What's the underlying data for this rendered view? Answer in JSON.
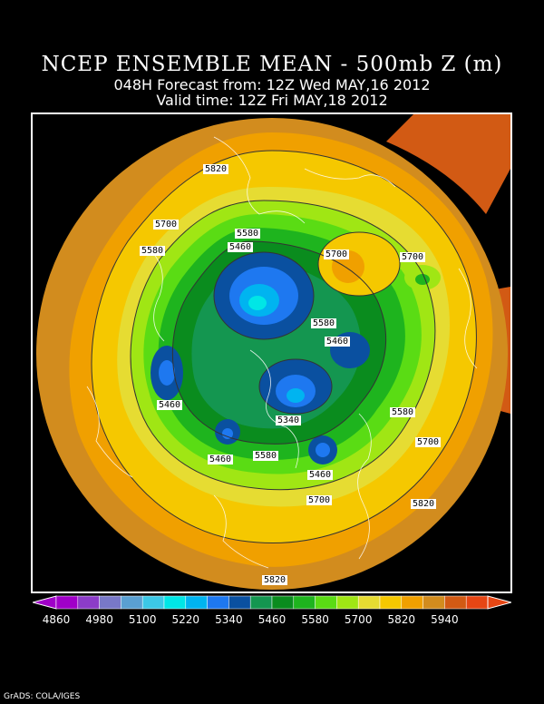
{
  "header": {
    "title": "NCEP ENSEMBLE MEAN - 500mb Z (m)",
    "forecast": "048H Forecast from: 12Z Wed MAY,16 2012",
    "valid": "Valid time: 12Z Fri MAY,18 2012"
  },
  "legend": {
    "ticks": [
      "4860",
      "4980",
      "5100",
      "5220",
      "5340",
      "5460",
      "5580",
      "5700",
      "5820",
      "5940"
    ],
    "colors": [
      "#a000c8",
      "#8c3cc8",
      "#7878c8",
      "#5aa0d2",
      "#3cc8e6",
      "#00e6e6",
      "#00b4f0",
      "#1e78f0",
      "#0a50a0",
      "#149650",
      "#0a8c1e",
      "#1eb41e",
      "#5adc14",
      "#a0e614",
      "#e6dc32",
      "#f5c800",
      "#f0a000",
      "#d28c1e",
      "#d25a14",
      "#e64614"
    ],
    "under_color": "#a000c8",
    "over_color": "#e64614"
  },
  "contour_labels": [
    {
      "text": "5820"
    },
    {
      "text": "5700"
    },
    {
      "text": "5580"
    },
    {
      "text": "5580"
    },
    {
      "text": "5460"
    },
    {
      "text": "5700"
    },
    {
      "text": "5700"
    },
    {
      "text": "5580"
    },
    {
      "text": "5460"
    },
    {
      "text": "5460"
    },
    {
      "text": "5340"
    },
    {
      "text": "5580"
    },
    {
      "text": "5460"
    },
    {
      "text": "5580"
    },
    {
      "text": "5460"
    },
    {
      "text": "5700"
    },
    {
      "text": "5700"
    },
    {
      "text": "5820"
    },
    {
      "text": "5820"
    }
  ],
  "credit": "GrADS: COLA/IGES"
}
